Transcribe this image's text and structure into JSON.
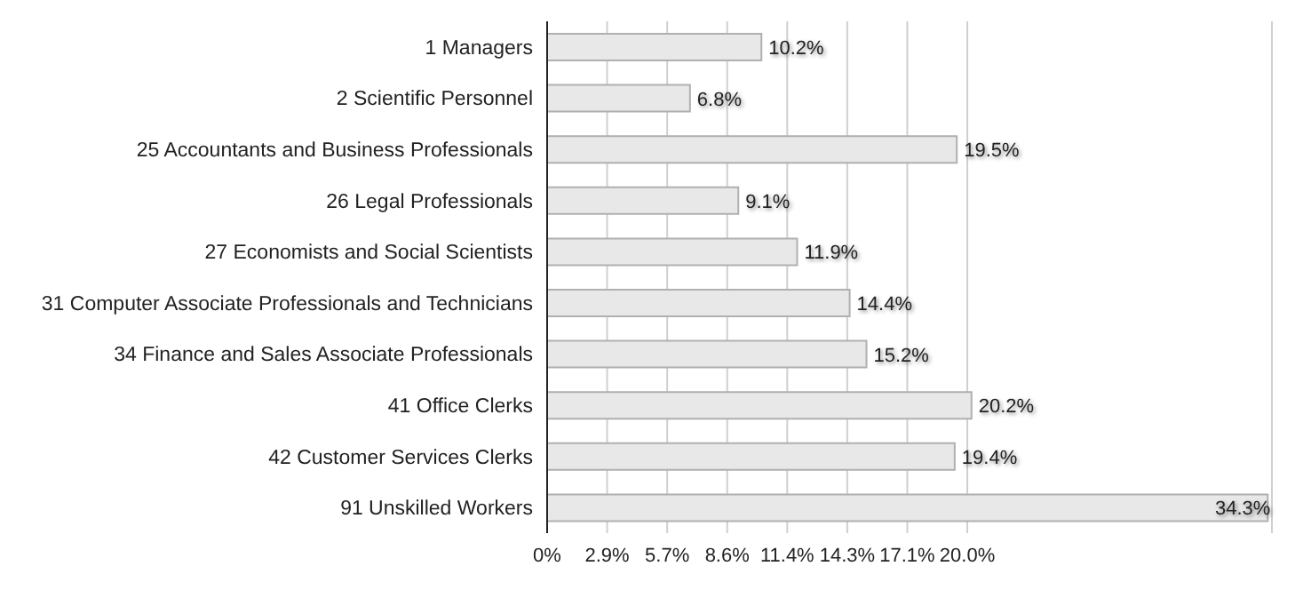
{
  "chart_data": {
    "type": "bar",
    "orientation": "horizontal",
    "categories": [
      "1 Managers",
      "2 Scientific Personnel",
      "25 Accountants and Business Professionals",
      "26 Legal Professionals",
      "27 Economists and Social Scientists",
      "31 Computer Associate Professionals and Technicians",
      "34 Finance and Sales Associate Professionals",
      "41 Office Clerks",
      "42 Customer Services Clerks",
      "91 Unskilled Workers"
    ],
    "values": [
      10.2,
      6.8,
      19.5,
      9.1,
      11.9,
      14.4,
      15.2,
      20.2,
      19.4,
      34.3
    ],
    "value_labels": [
      "10.2%",
      "6.8%",
      "19.5%",
      "9.1%",
      "11.9%",
      "14.4%",
      "15.2%",
      "20.2%",
      "19.4%",
      "34.3%"
    ],
    "color": "#e8e8e8",
    "xlim": [
      0,
      34.5
    ],
    "xticks": [
      {
        "value": 0,
        "label": "0%"
      },
      {
        "value": 2.857,
        "label": "2.9%"
      },
      {
        "value": 5.714,
        "label": "5.7%"
      },
      {
        "value": 8.571,
        "label": "8.6%"
      },
      {
        "value": 11.429,
        "label": "11.4%"
      },
      {
        "value": 14.286,
        "label": "14.3%"
      },
      {
        "value": 17.143,
        "label": "17.1%"
      },
      {
        "value": 20,
        "label": "20.0%"
      }
    ],
    "grid": "x"
  }
}
